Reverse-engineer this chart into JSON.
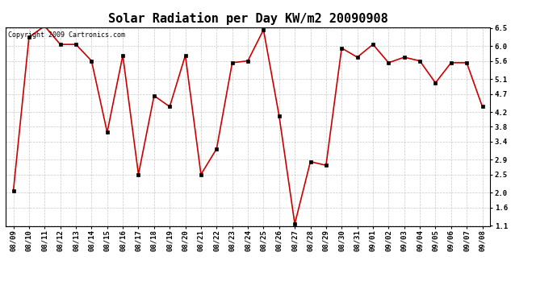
{
  "title": "Solar Radiation per Day KW/m2 20090908",
  "copyright_text": "Copyright 2009 Cartronics.com",
  "labels": [
    "08/09",
    "08/10",
    "08/11",
    "08/12",
    "08/13",
    "08/14",
    "08/15",
    "08/16",
    "08/17",
    "08/18",
    "08/19",
    "08/20",
    "08/21",
    "08/22",
    "08/23",
    "08/24",
    "08/25",
    "08/26",
    "08/27",
    "08/28",
    "08/29",
    "08/30",
    "08/31",
    "09/01",
    "09/02",
    "09/03",
    "09/04",
    "09/05",
    "09/06",
    "09/07",
    "09/08"
  ],
  "values": [
    2.06,
    6.25,
    6.55,
    6.05,
    6.05,
    5.6,
    3.65,
    5.75,
    2.5,
    4.65,
    4.35,
    5.75,
    2.5,
    3.2,
    5.55,
    5.6,
    6.45,
    4.1,
    1.15,
    2.85,
    2.75,
    5.95,
    5.7,
    6.05,
    5.55,
    5.7,
    5.6,
    5.0,
    5.55,
    5.55,
    4.35
  ],
  "line_color": "#cc0000",
  "marker_color": "#000000",
  "bg_color": "#ffffff",
  "grid_color": "#c8c8c8",
  "ylim_min": 1.1,
  "ylim_max": 6.5,
  "yticks": [
    1.1,
    1.6,
    2.0,
    2.5,
    2.9,
    3.4,
    3.8,
    4.2,
    4.7,
    5.1,
    5.6,
    6.0,
    6.5
  ],
  "title_fontsize": 11,
  "tick_fontsize": 6.5,
  "copyright_fontsize": 6
}
